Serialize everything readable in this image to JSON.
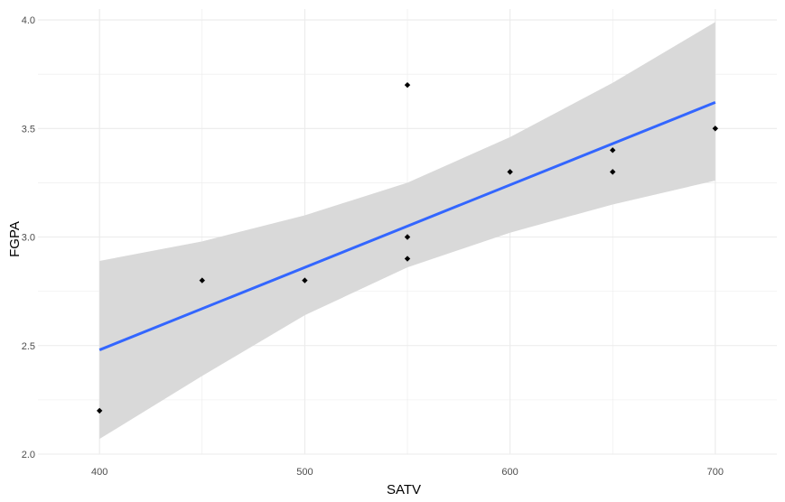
{
  "chart_data": {
    "type": "scatter",
    "title": "",
    "xlabel": "SATV",
    "ylabel": "FGPA",
    "xlim": [
      370,
      730
    ],
    "ylim": [
      2.0,
      4.05
    ],
    "x_ticks": [
      "400",
      "500",
      "600",
      "700"
    ],
    "y_ticks": [
      "2.0",
      "2.5",
      "3.0",
      "3.5",
      "4.0"
    ],
    "grid": true,
    "legend": "none",
    "points": [
      {
        "x": 400,
        "y": 2.2
      },
      {
        "x": 450,
        "y": 2.8
      },
      {
        "x": 500,
        "y": 2.8
      },
      {
        "x": 550,
        "y": 3.7
      },
      {
        "x": 550,
        "y": 3.0
      },
      {
        "x": 550,
        "y": 2.9
      },
      {
        "x": 600,
        "y": 3.3
      },
      {
        "x": 650,
        "y": 3.4
      },
      {
        "x": 650,
        "y": 3.3
      },
      {
        "x": 700,
        "y": 3.5
      }
    ],
    "fit_line": {
      "method": "linear",
      "x": [
        400,
        700
      ],
      "y": [
        2.48,
        3.62
      ],
      "color": "#3366FF"
    },
    "confidence_band": {
      "x": [
        400,
        450,
        500,
        550,
        600,
        650,
        700
      ],
      "lower": [
        2.07,
        2.36,
        2.64,
        2.86,
        3.02,
        3.15,
        3.26
      ],
      "upper": [
        2.89,
        2.98,
        3.1,
        3.25,
        3.46,
        3.71,
        3.99
      ],
      "color": "#D9D9D9"
    },
    "colors": {
      "points": "#000000",
      "grid": "#EBEBEB",
      "background": "#FFFFFF"
    }
  }
}
